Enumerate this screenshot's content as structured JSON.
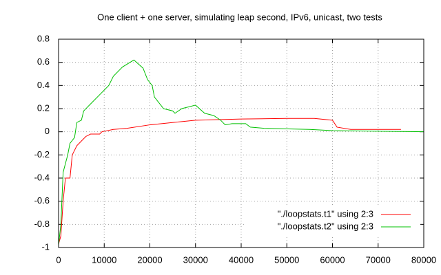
{
  "chart_data": {
    "type": "line",
    "title": "One client + one server, simulating leap second, IPv6, unicast, two tests",
    "xlim": [
      0,
      80000
    ],
    "xticks": [
      0,
      10000,
      20000,
      30000,
      40000,
      50000,
      60000,
      70000,
      80000
    ],
    "ylim": [
      -1,
      0.8
    ],
    "yticks": [
      -1,
      -0.8,
      -0.6,
      -0.4,
      -0.2,
      0,
      0.2,
      0.4,
      0.6,
      0.8
    ],
    "grid": true,
    "legend": "bottom-right",
    "series": [
      {
        "name": "\"./loopstats.t1\" using 2:3",
        "color": "#ff0000",
        "x": [
          0,
          500,
          1000,
          1500,
          2500,
          3000,
          4000,
          5000,
          6000,
          7000,
          9000,
          9500,
          12000,
          15000,
          20000,
          30000,
          40000,
          50000,
          56000,
          60000,
          61000,
          64000,
          70000,
          75000
        ],
        "values": [
          -0.97,
          -0.9,
          -0.6,
          -0.4,
          -0.4,
          -0.2,
          -0.12,
          -0.08,
          -0.04,
          -0.02,
          -0.02,
          0,
          0.02,
          0.03,
          0.06,
          0.1,
          0.11,
          0.115,
          0.115,
          0.1,
          0.04,
          0.02,
          0.02,
          0.02
        ]
      },
      {
        "name": "\"./loopstats.t2\" using 2:3",
        "color": "#00c000",
        "x": [
          0,
          500,
          1000,
          2000,
          2500,
          3500,
          4000,
          5000,
          5500,
          7000,
          9000,
          11000,
          12000,
          14000,
          16500,
          18500,
          19500,
          20500,
          21000,
          23000,
          25000,
          25500,
          27000,
          30000,
          32000,
          34000,
          35500,
          36500,
          38000,
          41000,
          42000,
          45000,
          55000,
          60000,
          70000,
          80000
        ],
        "values": [
          -0.98,
          -0.8,
          -0.35,
          -0.2,
          -0.1,
          -0.05,
          0.08,
          0.1,
          0.18,
          0.24,
          0.32,
          0.4,
          0.48,
          0.56,
          0.62,
          0.55,
          0.45,
          0.4,
          0.3,
          0.2,
          0.18,
          0.16,
          0.2,
          0.23,
          0.16,
          0.14,
          0.1,
          0.06,
          0.07,
          0.07,
          0.04,
          0.03,
          0.02,
          0.01,
          0.005,
          0
        ]
      }
    ]
  }
}
